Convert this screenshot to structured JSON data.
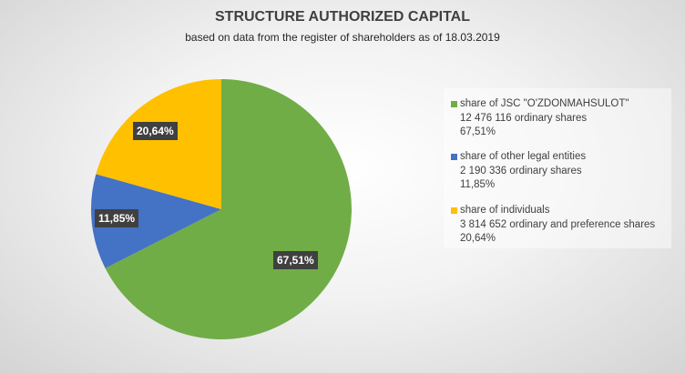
{
  "chart_data": {
    "type": "pie",
    "title": "STRUCTURE AUTHORIZED CAPITAL",
    "subtitle": "based on data from the register of shareholders as of 18.03.2019",
    "slices": [
      {
        "name": "share of JSC \"O'ZDONMAHSULOT\"",
        "detail": "12 476 116 ordinary shares",
        "value": 67.51,
        "label": "67,51%",
        "color": "#70ad47"
      },
      {
        "name": "share of other legal entities",
        "detail": "2 190 336 ordinary shares",
        "value": 11.85,
        "label": "11,85%",
        "color": "#4472c4"
      },
      {
        "name": "share of individuals",
        "detail": "3 814 652 ordinary and preference shares",
        "value": 20.64,
        "label": "20,64%",
        "color": "#ffc000"
      }
    ],
    "legend_position": "right"
  }
}
